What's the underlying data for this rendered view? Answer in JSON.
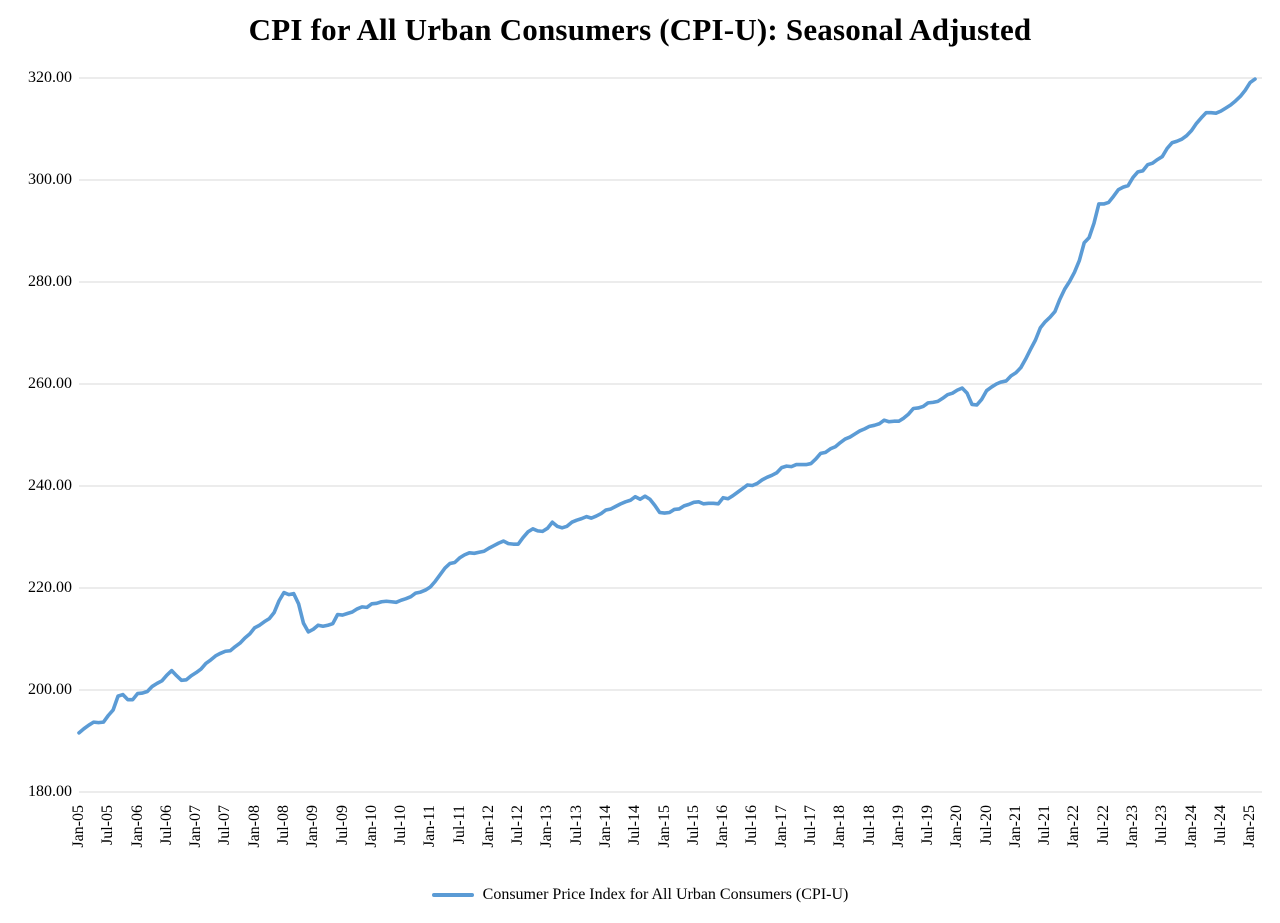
{
  "title": "CPI for All Urban Consumers (CPI-U): Seasonal Adjusted",
  "legend": {
    "label": "Consumer Price Index for All Urban Consumers (CPI-U)"
  },
  "colors": {
    "line": "#5B9BD5",
    "gridline": "#D9D9D9",
    "text": "#000000",
    "background": "#FFFFFF"
  },
  "chart_data": {
    "type": "line",
    "title": "CPI for All Urban Consumers (CPI-U): Seasonal Adjusted",
    "xlabel": "",
    "ylabel": "",
    "ylim": [
      180,
      320
    ],
    "ytick_step": 20,
    "ytick_labels": [
      "320.00",
      "300.00",
      "280.00",
      "260.00",
      "240.00",
      "220.00",
      "200.00",
      "180.00"
    ],
    "xtick_labels": [
      "Jan-05",
      "Jul-05",
      "Jan-06",
      "Jul-06",
      "Jan-07",
      "Jul-07",
      "Jan-08",
      "Jul-08",
      "Jan-09",
      "Jul-09",
      "Jan-10",
      "Jul-10",
      "Jan-11",
      "Jul-11",
      "Jan-12",
      "Jul-12",
      "Jan-13",
      "Jul-13",
      "Jan-14",
      "Jul-14",
      "Jan-15",
      "Jul-15",
      "Jan-16",
      "Jul-16",
      "Jan-17",
      "Jul-17",
      "Jan-18",
      "Jul-18",
      "Jan-19",
      "Jul-19",
      "Jan-20",
      "Jul-20",
      "Jan-21",
      "Jul-21",
      "Jan-22",
      "Jul-22",
      "Jan-23",
      "Jul-23",
      "Jan-24",
      "Jul-24",
      "Jan-25"
    ],
    "xtick_interval_months": 6,
    "grid": "horizontal",
    "legend_position": "bottom-center",
    "series": [
      {
        "name": "Consumer Price Index for All Urban Consumers (CPI-U)",
        "color": "#5B9BD5",
        "frequency": "monthly",
        "start": "Jan-05",
        "end": "Feb-25",
        "values": [
          191.6,
          192.4,
          193.1,
          193.7,
          193.6,
          193.7,
          195.0,
          196.1,
          198.8,
          199.1,
          198.1,
          198.1,
          199.3,
          199.4,
          199.7,
          200.7,
          201.3,
          201.8,
          202.9,
          203.8,
          202.8,
          201.9,
          202.0,
          202.8,
          203.4,
          204.1,
          205.2,
          205.9,
          206.7,
          207.2,
          207.6,
          207.7,
          208.5,
          209.2,
          210.2,
          211.0,
          212.2,
          212.7,
          213.4,
          214.0,
          215.2,
          217.5,
          219.1,
          218.7,
          218.9,
          216.9,
          213.1,
          211.4,
          211.9,
          212.7,
          212.5,
          212.7,
          213.0,
          214.8,
          214.7,
          215.0,
          215.3,
          215.9,
          216.3,
          216.2,
          216.9,
          217.0,
          217.3,
          217.4,
          217.3,
          217.2,
          217.6,
          217.9,
          218.3,
          219.0,
          219.2,
          219.6,
          220.2,
          221.3,
          222.6,
          223.9,
          224.8,
          225.0,
          225.9,
          226.5,
          226.9,
          226.8,
          227.0,
          227.2,
          227.8,
          228.3,
          228.8,
          229.2,
          228.7,
          228.6,
          228.6,
          229.9,
          231.0,
          231.6,
          231.2,
          231.1,
          231.7,
          232.9,
          232.1,
          231.8,
          232.1,
          232.9,
          233.3,
          233.6,
          234.0,
          233.7,
          234.1,
          234.6,
          235.3,
          235.5,
          236.0,
          236.5,
          236.9,
          237.2,
          237.9,
          237.4,
          238.0,
          237.4,
          236.2,
          234.8,
          234.7,
          234.8,
          235.4,
          235.5,
          236.1,
          236.4,
          236.8,
          236.9,
          236.5,
          236.6,
          236.6,
          236.5,
          237.7,
          237.5,
          238.1,
          238.8,
          239.5,
          240.2,
          240.1,
          240.5,
          241.2,
          241.7,
          242.1,
          242.6,
          243.6,
          243.9,
          243.8,
          244.2,
          244.2,
          244.2,
          244.4,
          245.3,
          246.4,
          246.6,
          247.3,
          247.7,
          248.5,
          249.2,
          249.6,
          250.2,
          250.8,
          251.2,
          251.7,
          251.9,
          252.2,
          252.9,
          252.6,
          252.7,
          252.7,
          253.3,
          254.1,
          255.2,
          255.3,
          255.6,
          256.3,
          256.4,
          256.6,
          257.2,
          257.9,
          258.2,
          258.8,
          259.2,
          258.2,
          256.0,
          255.9,
          257.0,
          258.7,
          259.4,
          260.0,
          260.4,
          260.6,
          261.6,
          262.2,
          263.2,
          264.9,
          266.8,
          268.6,
          271.0,
          272.2,
          273.1,
          274.2,
          276.6,
          278.6,
          280.1,
          281.9,
          284.2,
          287.7,
          288.7,
          291.5,
          295.3,
          295.3,
          295.6,
          296.8,
          298.1,
          298.6,
          298.9,
          300.5,
          301.6,
          301.8,
          303.0,
          303.3,
          304.0,
          304.6,
          306.2,
          307.3,
          307.6,
          308.0,
          308.7,
          309.7,
          311.1,
          312.2,
          313.2,
          313.2,
          313.1,
          313.5,
          314.1,
          314.7,
          315.5,
          316.4,
          317.6,
          319.1,
          319.8
        ]
      }
    ]
  }
}
